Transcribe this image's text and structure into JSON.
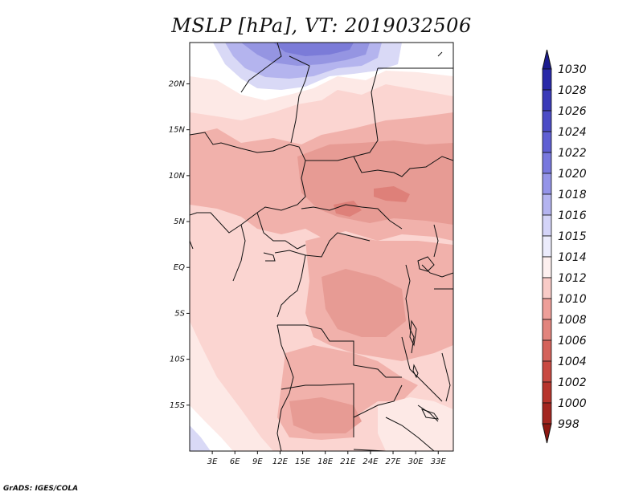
{
  "title": "MSLP [hPa], VT: 2019032506",
  "credit": "GrADS: IGES/COLA",
  "map": {
    "variable": "Mean Sea Level Pressure",
    "units": "hPa",
    "valid_time": "2019032506",
    "lat_labels": [
      "20N",
      "15N",
      "10N",
      "5N",
      "EQ",
      "5S",
      "10S",
      "15S"
    ],
    "lon_labels": [
      "3E",
      "6E",
      "9E",
      "12E",
      "15E",
      "18E",
      "21E",
      "24E",
      "27E",
      "30E",
      "33E"
    ],
    "lat_values": [
      20,
      15,
      10,
      5,
      0,
      -5,
      -10,
      -15
    ],
    "lon_values": [
      3,
      6,
      9,
      12,
      15,
      18,
      21,
      24,
      27,
      30,
      33
    ],
    "lat_range": [
      -20,
      24.5
    ],
    "lon_range": [
      0,
      35
    ]
  },
  "colorbar": {
    "levels": [
      "1030",
      "1028",
      "1026",
      "1024",
      "1022",
      "1020",
      "1018",
      "1016",
      "1015",
      "1014",
      "1012",
      "1010",
      "1008",
      "1006",
      "1004",
      "1002",
      "1000",
      "998"
    ],
    "colors": [
      "#1c1c8f",
      "#2828a8",
      "#3a3ab8",
      "#4c4cc6",
      "#5f5fd3",
      "#7878de",
      "#9494e8",
      "#b4b4f0",
      "#d4d4f8",
      "#ececfc",
      "#fdf0ef",
      "#f8cbc7",
      "#ee9f99",
      "#e2847d",
      "#d4625a",
      "#c84941",
      "#b7342c",
      "#a32620",
      "#8e1812"
    ]
  },
  "colors": {
    "c1012": "#fbd5d1",
    "c1014": "#fde9e6",
    "c1010": "#f1b1ab",
    "c1008": "#e79b94",
    "c1006": "#de8079",
    "c1016": "#ffffff",
    "c1018": "#d9d9f6",
    "c1020": "#b4b4ee",
    "c1022": "#9595e2",
    "c1024": "#7b7bd8"
  }
}
